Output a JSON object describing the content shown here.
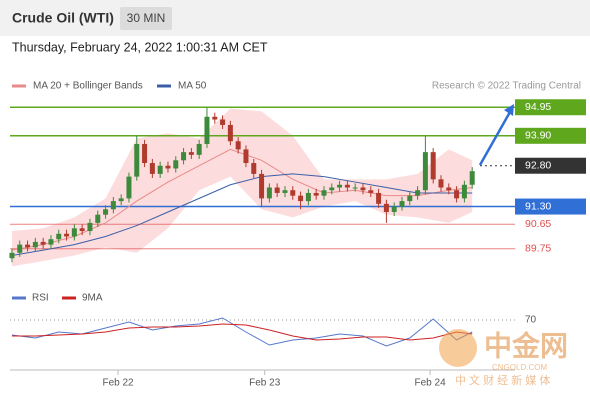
{
  "header": {
    "title": "Crude Oil (WTI)",
    "timeframe": "30 MIN",
    "timestamp": "Thursday, February 24, 2022 1:00:31 AM CET"
  },
  "watermark": {
    "brand": "中金网",
    "site": "CNGOLD.COM",
    "slogan": "中 文 财 经 新 媒 体"
  },
  "chart_data": [
    {
      "type": "candlestick",
      "credit": "Research © 2022 Trading Central",
      "up_color": "#3d8a3d",
      "down_color": "#b03a2e",
      "xlim": [
        -0.25,
        60
      ],
      "ylim": [
        88.6,
        95.4
      ],
      "ohlc": [
        [
          89.4,
          89.75,
          89.25,
          89.6
        ],
        [
          89.6,
          90.05,
          89.45,
          89.9
        ],
        [
          89.9,
          90.05,
          89.65,
          89.8
        ],
        [
          89.8,
          90.15,
          89.65,
          90.0
        ],
        [
          90.0,
          90.15,
          89.75,
          89.9
        ],
        [
          89.9,
          90.25,
          89.75,
          90.1
        ],
        [
          90.1,
          90.45,
          89.95,
          90.3
        ],
        [
          90.3,
          90.45,
          90.05,
          90.2
        ],
        [
          90.2,
          90.65,
          90.05,
          90.5
        ],
        [
          90.5,
          90.65,
          90.25,
          90.4
        ],
        [
          90.4,
          90.85,
          90.25,
          90.7
        ],
        [
          90.7,
          91.15,
          90.55,
          91.0
        ],
        [
          91.0,
          91.35,
          90.85,
          91.2
        ],
        [
          91.2,
          91.65,
          91.05,
          91.5
        ],
        [
          91.5,
          91.75,
          91.35,
          91.6
        ],
        [
          91.6,
          92.55,
          91.45,
          92.4
        ],
        [
          92.4,
          93.9,
          92.25,
          93.6
        ],
        [
          93.6,
          93.75,
          92.75,
          92.9
        ],
        [
          92.9,
          93.05,
          92.35,
          92.5
        ],
        [
          92.5,
          92.95,
          92.35,
          92.8
        ],
        [
          92.8,
          92.95,
          92.55,
          92.7
        ],
        [
          92.7,
          93.15,
          92.55,
          93.0
        ],
        [
          93.0,
          93.45,
          92.85,
          93.3
        ],
        [
          93.3,
          93.45,
          93.05,
          93.2
        ],
        [
          93.2,
          93.75,
          93.05,
          93.6
        ],
        [
          93.6,
          94.95,
          93.45,
          94.6
        ],
        [
          94.6,
          94.75,
          94.35,
          94.5
        ],
        [
          94.5,
          94.65,
          94.15,
          94.3
        ],
        [
          94.3,
          94.45,
          93.55,
          93.7
        ],
        [
          93.7,
          93.85,
          93.25,
          93.4
        ],
        [
          93.4,
          93.55,
          92.75,
          92.9
        ],
        [
          92.9,
          93.05,
          92.35,
          92.5
        ],
        [
          92.5,
          92.65,
          91.3,
          91.6
        ],
        [
          91.6,
          92.15,
          91.45,
          92.0
        ],
        [
          92.0,
          92.15,
          91.65,
          91.8
        ],
        [
          91.8,
          92.05,
          91.65,
          91.9
        ],
        [
          91.9,
          92.05,
          91.55,
          91.7
        ],
        [
          91.7,
          91.85,
          91.2,
          91.5
        ],
        [
          91.5,
          91.95,
          91.35,
          91.8
        ],
        [
          91.8,
          91.95,
          91.55,
          91.7
        ],
        [
          91.7,
          92.05,
          91.55,
          91.9
        ],
        [
          91.9,
          92.15,
          91.75,
          92.0
        ],
        [
          92.0,
          92.25,
          91.85,
          92.1
        ],
        [
          92.1,
          92.25,
          91.85,
          92.0
        ],
        [
          92.0,
          92.15,
          91.85,
          92.0
        ],
        [
          92.0,
          92.15,
          91.75,
          91.9
        ],
        [
          91.9,
          92.05,
          91.65,
          91.8
        ],
        [
          91.8,
          91.95,
          91.25,
          91.4
        ],
        [
          91.4,
          91.55,
          90.7,
          91.1
        ],
        [
          91.1,
          91.45,
          90.95,
          91.3
        ],
        [
          91.3,
          91.65,
          91.15,
          91.5
        ],
        [
          91.5,
          91.85,
          91.35,
          91.7
        ],
        [
          91.7,
          92.05,
          91.55,
          91.9
        ],
        [
          91.9,
          93.9,
          91.75,
          93.3
        ],
        [
          93.3,
          93.45,
          92.15,
          92.3
        ],
        [
          92.3,
          92.45,
          91.85,
          92.0
        ],
        [
          92.0,
          92.15,
          91.75,
          91.9
        ],
        [
          91.9,
          92.05,
          91.45,
          91.6
        ],
        [
          91.6,
          92.25,
          91.45,
          92.1
        ],
        [
          92.1,
          92.75,
          91.95,
          92.6
        ]
      ],
      "series": [
        {
          "name": "MA 20 + Bollinger Bands",
          "color": "#e98a8a",
          "band_color": "#fbd3d3",
          "x": [
            0,
            4,
            8,
            12,
            16,
            20,
            24,
            28,
            32,
            36,
            40,
            44,
            48,
            52,
            56,
            59
          ],
          "values": [
            89.7,
            89.9,
            90.2,
            90.7,
            91.5,
            92.2,
            92.8,
            93.4,
            93.0,
            92.3,
            91.8,
            91.9,
            91.7,
            91.7,
            91.9,
            92.0
          ],
          "upper": [
            90.4,
            90.5,
            90.9,
            91.6,
            93.8,
            94.0,
            93.8,
            94.9,
            94.8,
            93.9,
            92.3,
            92.3,
            92.3,
            92.5,
            93.4,
            93.0
          ],
          "lower": [
            89.1,
            89.3,
            89.5,
            89.8,
            89.6,
            90.5,
            91.9,
            92.4,
            91.2,
            90.9,
            91.3,
            91.5,
            91.0,
            90.9,
            90.7,
            91.1
          ]
        },
        {
          "name": "MA 50",
          "color": "#3a5fa8",
          "x": [
            0,
            4,
            8,
            12,
            16,
            20,
            24,
            28,
            32,
            36,
            40,
            44,
            48,
            52,
            56,
            59
          ],
          "values": [
            89.5,
            89.7,
            89.9,
            90.2,
            90.6,
            91.1,
            91.6,
            92.1,
            92.4,
            92.5,
            92.4,
            92.2,
            92.0,
            91.8,
            91.8,
            91.8
          ]
        }
      ],
      "levels": [
        {
          "value": 94.95,
          "color": "#5fa81e",
          "style": "box",
          "line": "solid"
        },
        {
          "value": 93.9,
          "label": "93.90",
          "color": "#5fa81e",
          "style": "box",
          "line": "solid"
        },
        {
          "value": 92.8,
          "label": "92.80",
          "color": "#333333",
          "style": "box",
          "line": "dotted"
        },
        {
          "value": 91.3,
          "label": "91.30",
          "color": "#2f6fd6",
          "style": "box",
          "line": "solid"
        },
        {
          "value": 90.65,
          "color": "#e05050",
          "style": "text",
          "line": "solid"
        },
        {
          "value": 89.75,
          "color": "#e05050",
          "style": "text",
          "line": "solid"
        }
      ]
    },
    {
      "type": "line",
      "xlim": [
        -0.25,
        60
      ],
      "ylim": [
        25,
        80
      ],
      "yticks": [
        70
      ],
      "xticks": [
        {
          "value": 13.6,
          "label": "Feb 22"
        },
        {
          "value": 32.4,
          "label": "Feb 23"
        },
        {
          "value": 53.6,
          "label": "Feb 24"
        }
      ],
      "series": [
        {
          "name": "RSI",
          "color": "#5577cc",
          "x": [
            0,
            3,
            6,
            9,
            12,
            15,
            18,
            21,
            24,
            27,
            30,
            33,
            36,
            39,
            42,
            45,
            48,
            51,
            54,
            57,
            59
          ],
          "values": [
            55,
            52,
            58,
            56,
            62,
            68,
            60,
            64,
            66,
            72,
            58,
            45,
            50,
            52,
            56,
            54,
            44,
            52,
            71,
            50,
            58
          ]
        },
        {
          "name": "9MA",
          "color": "#cc2222",
          "x": [
            0,
            3,
            6,
            9,
            12,
            15,
            18,
            21,
            24,
            27,
            30,
            33,
            36,
            39,
            42,
            45,
            48,
            51,
            54,
            57,
            59
          ],
          "values": [
            54,
            54,
            55,
            56,
            58,
            62,
            63,
            63,
            64,
            66,
            65,
            60,
            54,
            50,
            51,
            53,
            53,
            50,
            52,
            58,
            56
          ]
        }
      ]
    }
  ]
}
